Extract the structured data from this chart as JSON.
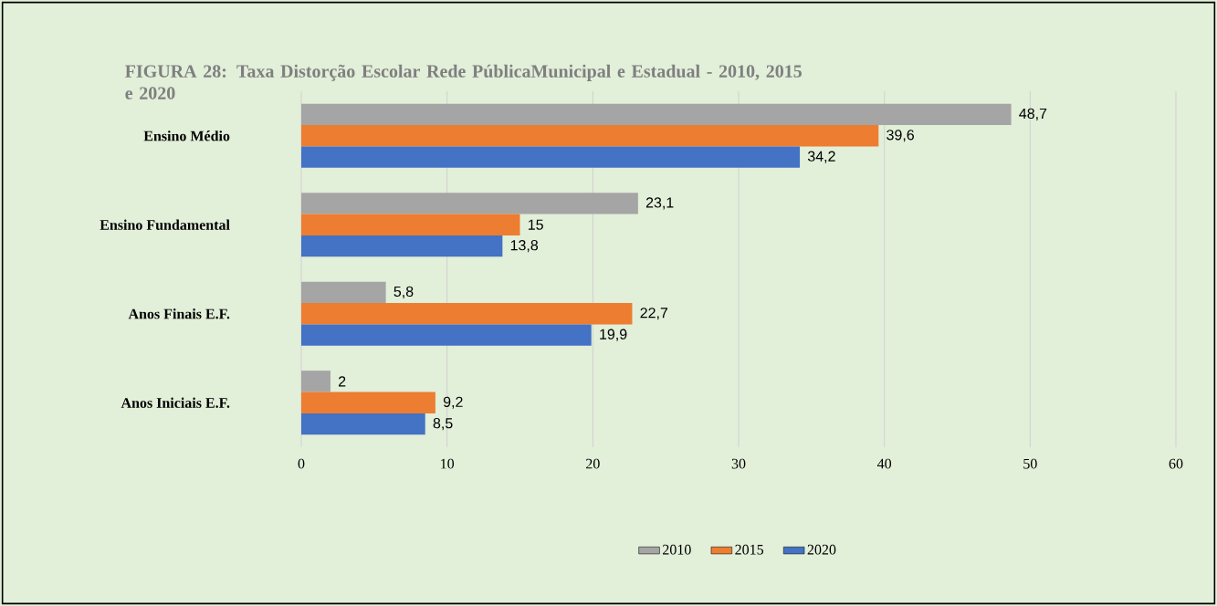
{
  "chart_data": {
    "type": "bar",
    "orientation": "horizontal",
    "title": "FIGURA 28: Taxa Distorção Escolar Rede PúblicaMunicipal e Estadual - 2010, 2015 e 2020",
    "categories": [
      "Ensino Médio",
      "Ensino Fundamental",
      "Anos Finais E.F.",
      "Anos Iniciais E.F."
    ],
    "series": [
      {
        "name": "2010",
        "color": "#a5a5a5",
        "values": [
          48.7,
          23.1,
          5.8,
          2
        ],
        "value_labels": [
          "48,7",
          "23,1",
          "5,8",
          "2"
        ]
      },
      {
        "name": "2015",
        "color": "#ed7d31",
        "values": [
          39.6,
          15,
          22.7,
          9.2
        ],
        "value_labels": [
          "39,6",
          "15",
          "22,7",
          "9,2"
        ]
      },
      {
        "name": "2020",
        "color": "#4472c4",
        "values": [
          34.2,
          13.8,
          19.9,
          8.5
        ],
        "value_labels": [
          "34,2",
          "13,8",
          "19,9",
          "8,5"
        ]
      }
    ],
    "xlim": [
      0,
      60
    ],
    "xticks": [
      0,
      10,
      20,
      30,
      40,
      50,
      60
    ],
    "grid": "x",
    "legend": "bottom"
  }
}
